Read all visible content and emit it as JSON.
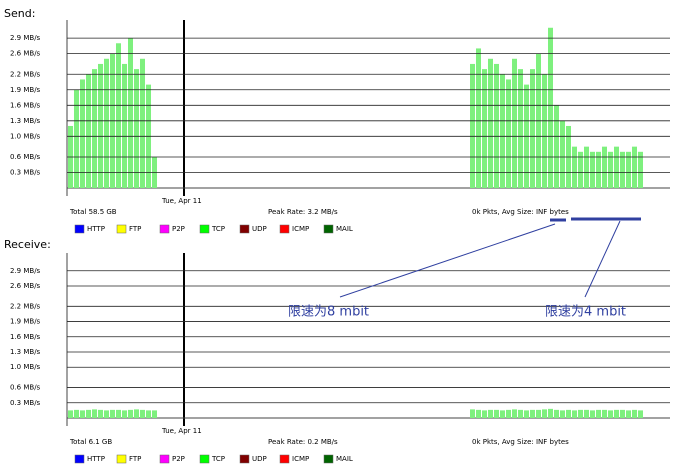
{
  "chart_data": [
    {
      "type": "bar",
      "title": "Send:",
      "color": "#7ef07e",
      "ylim": [
        0,
        3.25
      ],
      "yticks": [
        {
          "value": 0.3,
          "label": "0.3 MB/s"
        },
        {
          "value": 0.6,
          "label": "0.6 MB/s"
        },
        {
          "value": 1.0,
          "label": "1.0 MB/s"
        },
        {
          "value": 1.3,
          "label": "1.3 MB/s"
        },
        {
          "value": 1.6,
          "label": "1.6 MB/s"
        },
        {
          "value": 1.9,
          "label": "1.9 MB/s"
        },
        {
          "value": 2.2,
          "label": "2.2 MB/s"
        },
        {
          "value": 2.6,
          "label": "2.6 MB/s"
        },
        {
          "value": 2.9,
          "label": "2.9 MB/s"
        }
      ],
      "grid": true,
      "date_label": "Tue, Apr 11",
      "total": "Total 58.5 GB",
      "peak": "Peak Rate: 3.2 MB/s",
      "pkts": "0k Pkts, Avg Size: INF bytes",
      "legend": [
        {
          "name": "HTTP",
          "color": "#0000ff"
        },
        {
          "name": "FTP",
          "color": "#ffff00"
        },
        {
          "name": "P2P",
          "color": "#ff00ff"
        },
        {
          "name": "TCP",
          "color": "#00ff00"
        },
        {
          "name": "UDP",
          "color": "#800000"
        },
        {
          "name": "ICMP",
          "color": "#ff0000"
        },
        {
          "name": "MAIL",
          "color": "#006400"
        }
      ],
      "values": [
        1.2,
        1.9,
        2.1,
        2.2,
        2.3,
        2.4,
        2.5,
        2.6,
        2.8,
        2.4,
        2.9,
        2.3,
        2.5,
        2.0,
        0.6,
        null,
        null,
        null,
        null,
        null,
        null,
        null,
        null,
        null,
        null,
        null,
        null,
        null,
        null,
        null,
        null,
        null,
        null,
        null,
        null,
        null,
        null,
        null,
        null,
        null,
        null,
        null,
        null,
        null,
        null,
        null,
        null,
        null,
        null,
        null,
        null,
        null,
        null,
        null,
        null,
        null,
        null,
        null,
        null,
        null,
        null,
        null,
        null,
        null,
        null,
        null,
        null,
        2.4,
        2.7,
        2.3,
        2.5,
        2.4,
        2.2,
        2.1,
        2.5,
        2.3,
        2.0,
        2.3,
        2.6,
        2.2,
        3.1,
        1.6,
        1.3,
        1.2,
        0.8,
        0.7,
        0.8,
        0.7,
        0.7,
        0.8,
        0.7,
        0.8,
        0.7,
        0.7,
        0.8,
        0.7,
        null,
        null,
        null,
        null
      ]
    },
    {
      "type": "bar",
      "title": "Receive:",
      "color": "#7ef07e",
      "ylim": [
        0,
        3.25
      ],
      "yticks": [
        {
          "value": 0.3,
          "label": "0.3 MB/s"
        },
        {
          "value": 0.6,
          "label": "0.6 MB/s"
        },
        {
          "value": 1.0,
          "label": "1.0 MB/s"
        },
        {
          "value": 1.3,
          "label": "1.3 MB/s"
        },
        {
          "value": 1.6,
          "label": "1.6 MB/s"
        },
        {
          "value": 1.9,
          "label": "1.9 MB/s"
        },
        {
          "value": 2.2,
          "label": "2.2 MB/s"
        },
        {
          "value": 2.6,
          "label": "2.6 MB/s"
        },
        {
          "value": 2.9,
          "label": "2.9 MB/s"
        }
      ],
      "grid": true,
      "date_label": "Tue, Apr 11",
      "total": "Total 6.1 GB",
      "peak": "Peak Rate: 0.2 MB/s",
      "pkts": "0k Pkts, Avg Size: INF bytes",
      "legend": [
        {
          "name": "HTTP",
          "color": "#0000ff"
        },
        {
          "name": "FTP",
          "color": "#ffff00"
        },
        {
          "name": "P2P",
          "color": "#ff00ff"
        },
        {
          "name": "TCP",
          "color": "#00ff00"
        },
        {
          "name": "UDP",
          "color": "#800000"
        },
        {
          "name": "ICMP",
          "color": "#ff0000"
        },
        {
          "name": "MAIL",
          "color": "#006400"
        }
      ],
      "values": [
        0.15,
        0.16,
        0.15,
        0.16,
        0.17,
        0.16,
        0.15,
        0.16,
        0.16,
        0.15,
        0.16,
        0.17,
        0.16,
        0.15,
        0.15,
        null,
        null,
        null,
        null,
        null,
        null,
        null,
        null,
        null,
        null,
        null,
        null,
        null,
        null,
        null,
        null,
        null,
        null,
        null,
        null,
        null,
        null,
        null,
        null,
        null,
        null,
        null,
        null,
        null,
        null,
        null,
        null,
        null,
        null,
        null,
        null,
        null,
        null,
        null,
        null,
        null,
        null,
        null,
        null,
        null,
        null,
        null,
        null,
        null,
        null,
        null,
        null,
        0.17,
        0.16,
        0.15,
        0.16,
        0.16,
        0.15,
        0.16,
        0.17,
        0.16,
        0.15,
        0.16,
        0.16,
        0.17,
        0.18,
        0.16,
        0.15,
        0.16,
        0.15,
        0.16,
        0.16,
        0.15,
        0.16,
        0.16,
        0.15,
        0.16,
        0.16,
        0.15,
        0.16,
        0.15,
        null,
        null,
        null,
        null
      ]
    }
  ],
  "annotations": [
    "限速为8 mbit",
    "限速为4 mbit"
  ]
}
